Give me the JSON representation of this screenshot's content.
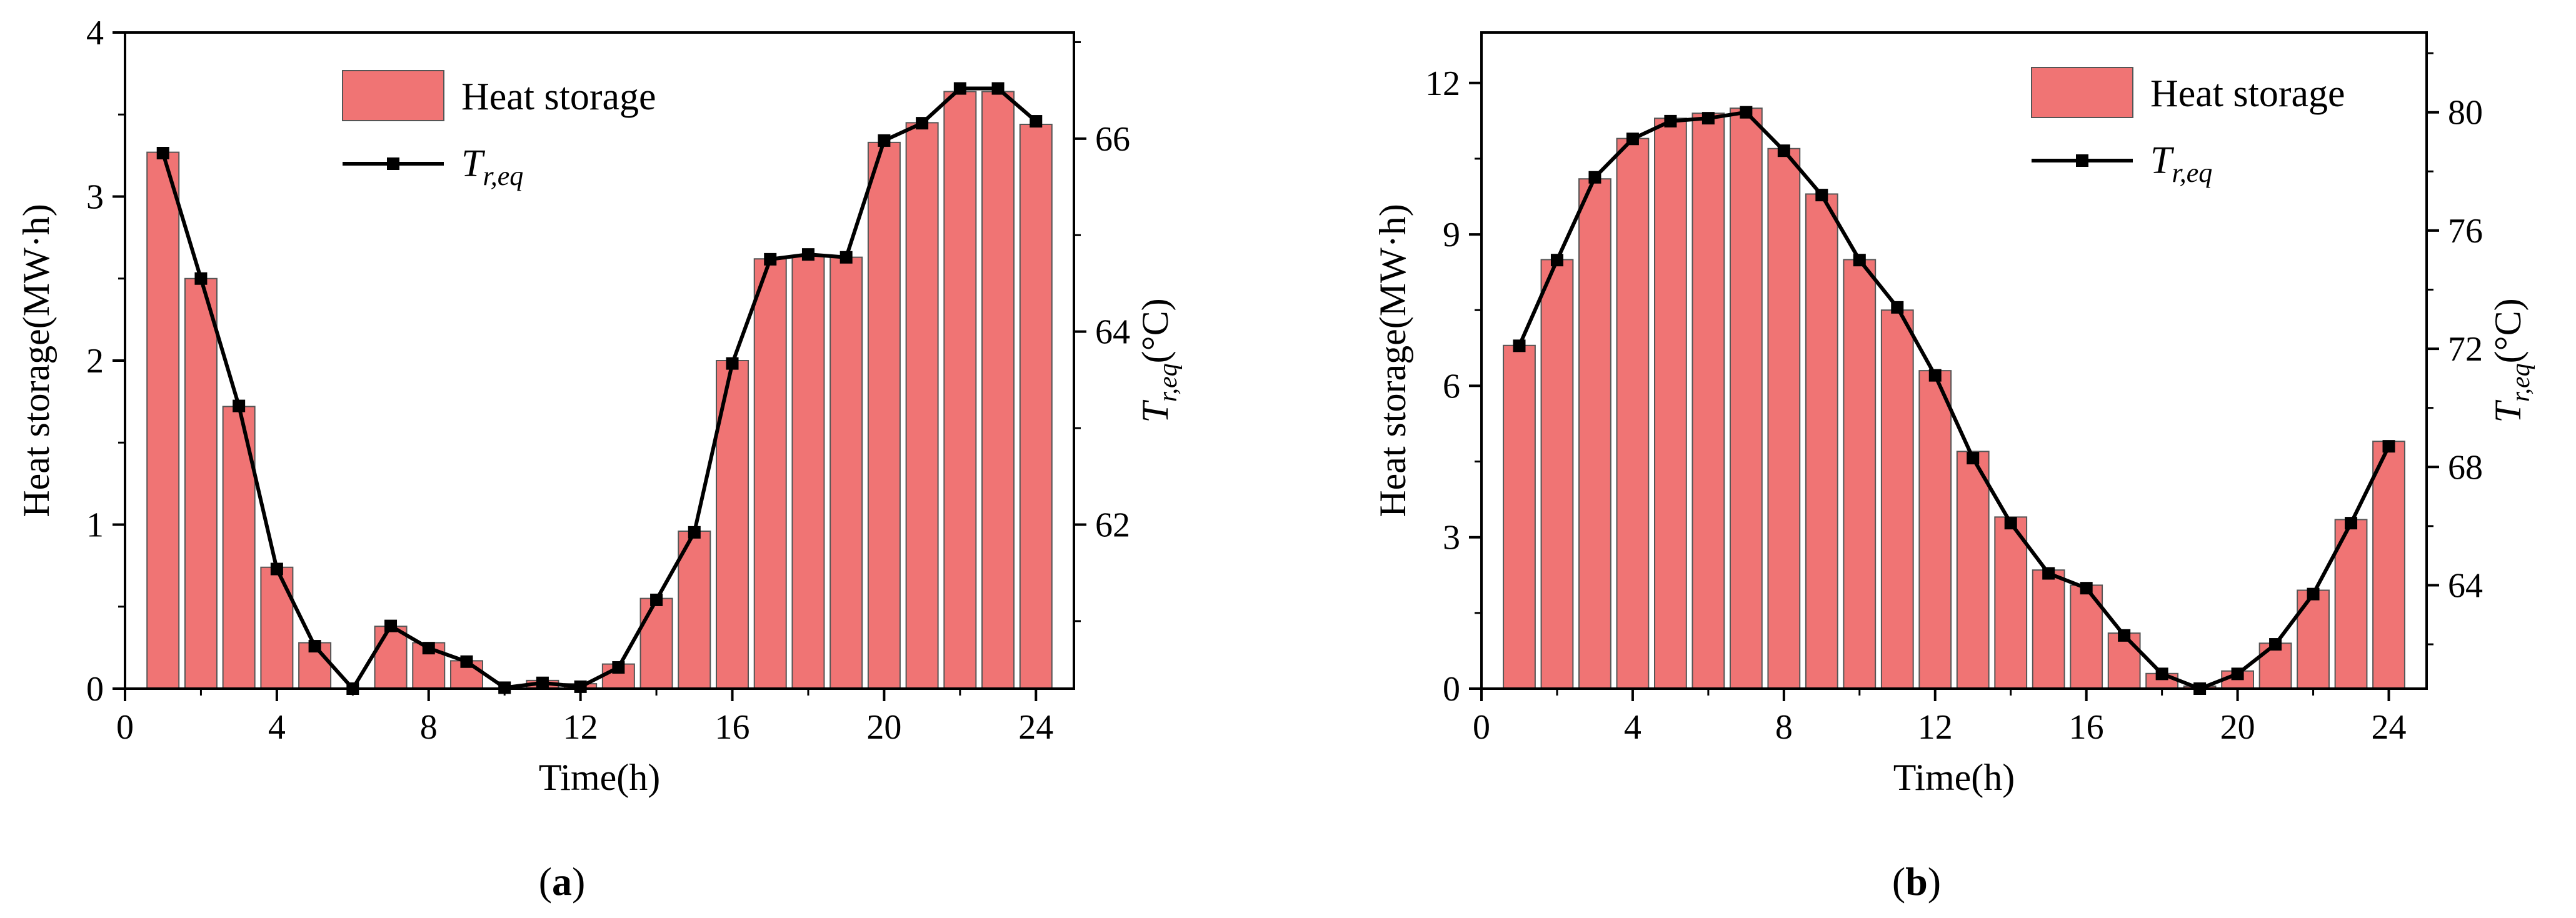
{
  "chart_data": [
    {
      "type": "bar",
      "panel_label_pre": "(",
      "panel_label_bold": "a",
      "panel_label_post": ")",
      "xlabel": "Time(h)",
      "ylabel": "Heat storage(MW·h)",
      "y2label_main": "T",
      "y2label_sub": "r,eq",
      "y2label_unit": "(°C)",
      "xlim": [
        0,
        25
      ],
      "xticks": [
        0,
        4,
        8,
        12,
        16,
        20,
        24
      ],
      "xtick_labels": [
        "0",
        "4",
        "8",
        "12",
        "16",
        "20",
        "24"
      ],
      "ylim": [
        0,
        4
      ],
      "yticks": [
        0,
        1,
        2,
        3,
        4
      ],
      "ytick_labels": [
        "0",
        "1",
        "2",
        "3",
        "4"
      ],
      "y2lim": [
        60.3,
        67.1
      ],
      "y2ticks": [
        62,
        64,
        66
      ],
      "y2tick_labels": [
        "62",
        "64",
        "66"
      ],
      "legend_position": "top-center",
      "x": [
        1,
        2,
        3,
        4,
        5,
        6,
        7,
        8,
        9,
        10,
        11,
        12,
        13,
        14,
        15,
        16,
        17,
        18,
        19,
        20,
        21,
        22,
        23,
        24
      ],
      "series": [
        {
          "name": "Heat storage",
          "type": "bar",
          "axis": "left",
          "color": "#F07474",
          "values": [
            3.27,
            2.5,
            1.72,
            0.74,
            0.28,
            0.0,
            0.38,
            0.28,
            0.17,
            0.0,
            0.05,
            0.03,
            0.15,
            0.55,
            0.96,
            2.0,
            2.62,
            2.64,
            2.63,
            3.33,
            3.45,
            3.64,
            3.64,
            3.44
          ]
        },
        {
          "name": "T",
          "name_sub": "r,eq",
          "type": "line",
          "axis": "right",
          "color": "#000000",
          "values": [
            65.85,
            64.55,
            63.23,
            61.54,
            60.74,
            60.3,
            60.95,
            60.72,
            60.58,
            60.31,
            60.36,
            60.32,
            60.52,
            61.22,
            61.92,
            63.67,
            64.75,
            64.8,
            64.77,
            65.98,
            66.16,
            66.52,
            66.52,
            66.18
          ]
        }
      ]
    },
    {
      "type": "bar",
      "panel_label_pre": "(",
      "panel_label_bold": "b",
      "panel_label_post": ")",
      "xlabel": "Time(h)",
      "ylabel": "Heat storage(MW·h)",
      "y2label_main": "T",
      "y2label_sub": "r,eq",
      "y2label_unit": "(°C)",
      "xlim": [
        0,
        25
      ],
      "xticks": [
        0,
        4,
        8,
        12,
        16,
        20,
        24
      ],
      "xtick_labels": [
        "0",
        "4",
        "8",
        "12",
        "16",
        "20",
        "24"
      ],
      "ylim": [
        0,
        13
      ],
      "yticks": [
        0,
        3,
        6,
        9,
        12
      ],
      "ytick_labels": [
        "0",
        "3",
        "6",
        "9",
        "12"
      ],
      "y2lim": [
        60.5,
        82.7
      ],
      "y2ticks": [
        64,
        68,
        72,
        76,
        80
      ],
      "y2tick_labels": [
        "64",
        "68",
        "72",
        "76",
        "80"
      ],
      "legend_position": "top-right",
      "x": [
        1,
        2,
        3,
        4,
        5,
        6,
        7,
        8,
        9,
        10,
        11,
        12,
        13,
        14,
        15,
        16,
        17,
        18,
        19,
        20,
        21,
        22,
        23,
        24
      ],
      "series": [
        {
          "name": "Heat storage",
          "type": "bar",
          "axis": "left",
          "color": "#F07474",
          "values": [
            6.8,
            8.5,
            10.1,
            10.9,
            11.3,
            11.4,
            11.5,
            10.7,
            9.8,
            8.5,
            7.5,
            6.3,
            4.7,
            3.4,
            2.35,
            2.05,
            1.1,
            0.3,
            0.05,
            0.35,
            0.9,
            1.95,
            3.35,
            4.9
          ]
        },
        {
          "name": "T",
          "name_sub": "r,eq",
          "type": "line",
          "axis": "right",
          "color": "#000000",
          "values": [
            72.1,
            75.0,
            77.8,
            79.1,
            79.7,
            79.8,
            80.0,
            78.7,
            77.2,
            75.0,
            73.4,
            71.1,
            68.3,
            66.1,
            64.4,
            63.9,
            62.3,
            61.0,
            60.5,
            61.0,
            62.0,
            63.7,
            66.1,
            68.7
          ]
        }
      ]
    }
  ]
}
